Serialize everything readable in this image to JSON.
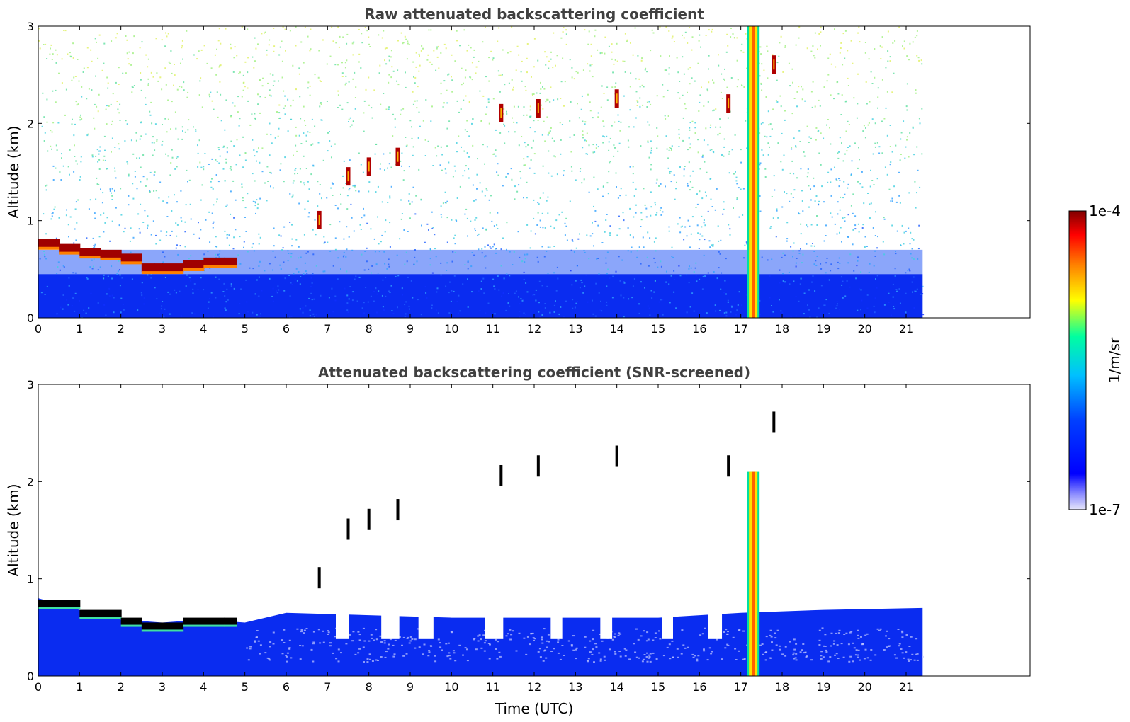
{
  "chart_data": [
    {
      "type": "heatmap",
      "title": "Raw attenuated backscattering coefficient",
      "xlabel": "",
      "ylabel": "Altitude (km)",
      "xlim": [
        0,
        24
      ],
      "ylim": [
        0,
        3
      ],
      "data_x_range": [
        0,
        21.4
      ],
      "xticks": [
        "0",
        "1",
        "2",
        "3",
        "4",
        "5",
        "6",
        "7",
        "8",
        "9",
        "10",
        "11",
        "12",
        "13",
        "14",
        "15",
        "16",
        "17",
        "18",
        "19",
        "20",
        "21"
      ],
      "yticks": [
        "0",
        "1",
        "2",
        "3"
      ],
      "cloud_base_height": [
        {
          "x": 0.0,
          "y": 0.75
        },
        {
          "x": 0.5,
          "y": 0.7
        },
        {
          "x": 1.0,
          "y": 0.66
        },
        {
          "x": 1.5,
          "y": 0.64
        },
        {
          "x": 2.0,
          "y": 0.6
        },
        {
          "x": 2.5,
          "y": 0.5
        },
        {
          "x": 3.0,
          "y": 0.48
        },
        {
          "x": 3.5,
          "y": 0.5
        },
        {
          "x": 4.0,
          "y": 0.53
        },
        {
          "x": 4.5,
          "y": 0.56
        },
        {
          "x": 4.8,
          "y": 0.55
        }
      ],
      "cloud_patches": [
        {
          "x": 6.8,
          "y": 1.0
        },
        {
          "x": 7.5,
          "y": 1.45
        },
        {
          "x": 8.0,
          "y": 1.55
        },
        {
          "x": 8.7,
          "y": 1.65
        },
        {
          "x": 11.2,
          "y": 2.1
        },
        {
          "x": 12.1,
          "y": 2.15
        },
        {
          "x": 14.0,
          "y": 2.25
        },
        {
          "x": 16.7,
          "y": 2.2
        },
        {
          "x": 17.8,
          "y": 2.6
        }
      ],
      "plume": {
        "x_center": 17.3,
        "top": 3.0
      }
    },
    {
      "type": "heatmap",
      "title": "Attenuated backscattering coefficient (SNR-screened)",
      "xlabel": "Time (UTC)",
      "ylabel": "Altitude (km)",
      "xlim": [
        0,
        24
      ],
      "ylim": [
        0,
        3
      ],
      "data_x_range": [
        0,
        21.4
      ],
      "xticks": [
        "0",
        "1",
        "2",
        "3",
        "4",
        "5",
        "6",
        "7",
        "8",
        "9",
        "10",
        "11",
        "12",
        "13",
        "14",
        "15",
        "16",
        "17",
        "18",
        "19",
        "20",
        "21"
      ],
      "yticks": [
        "0",
        "1",
        "2",
        "3"
      ],
      "screened_layer_top": [
        {
          "x": 0.0,
          "y": 0.8
        },
        {
          "x": 1.0,
          "y": 0.68
        },
        {
          "x": 2.0,
          "y": 0.58
        },
        {
          "x": 3.0,
          "y": 0.55
        },
        {
          "x": 4.0,
          "y": 0.58
        },
        {
          "x": 5.0,
          "y": 0.55
        },
        {
          "x": 6.0,
          "y": 0.65
        },
        {
          "x": 10.0,
          "y": 0.6
        },
        {
          "x": 15.0,
          "y": 0.6
        },
        {
          "x": 17.0,
          "y": 0.65
        },
        {
          "x": 19.0,
          "y": 0.68
        },
        {
          "x": 21.4,
          "y": 0.7
        }
      ],
      "plume": {
        "x_center": 17.3,
        "top": 2.1
      }
    }
  ],
  "colorbar": {
    "label": "1/m/sr",
    "max_label": "1e-4",
    "min_label": "1e-7",
    "colormap": "jet",
    "colors": [
      "#e6e6fa",
      "#0000ff",
      "#00bfff",
      "#00ffa0",
      "#ffff00",
      "#ff8000",
      "#ff0000",
      "#800000"
    ]
  }
}
